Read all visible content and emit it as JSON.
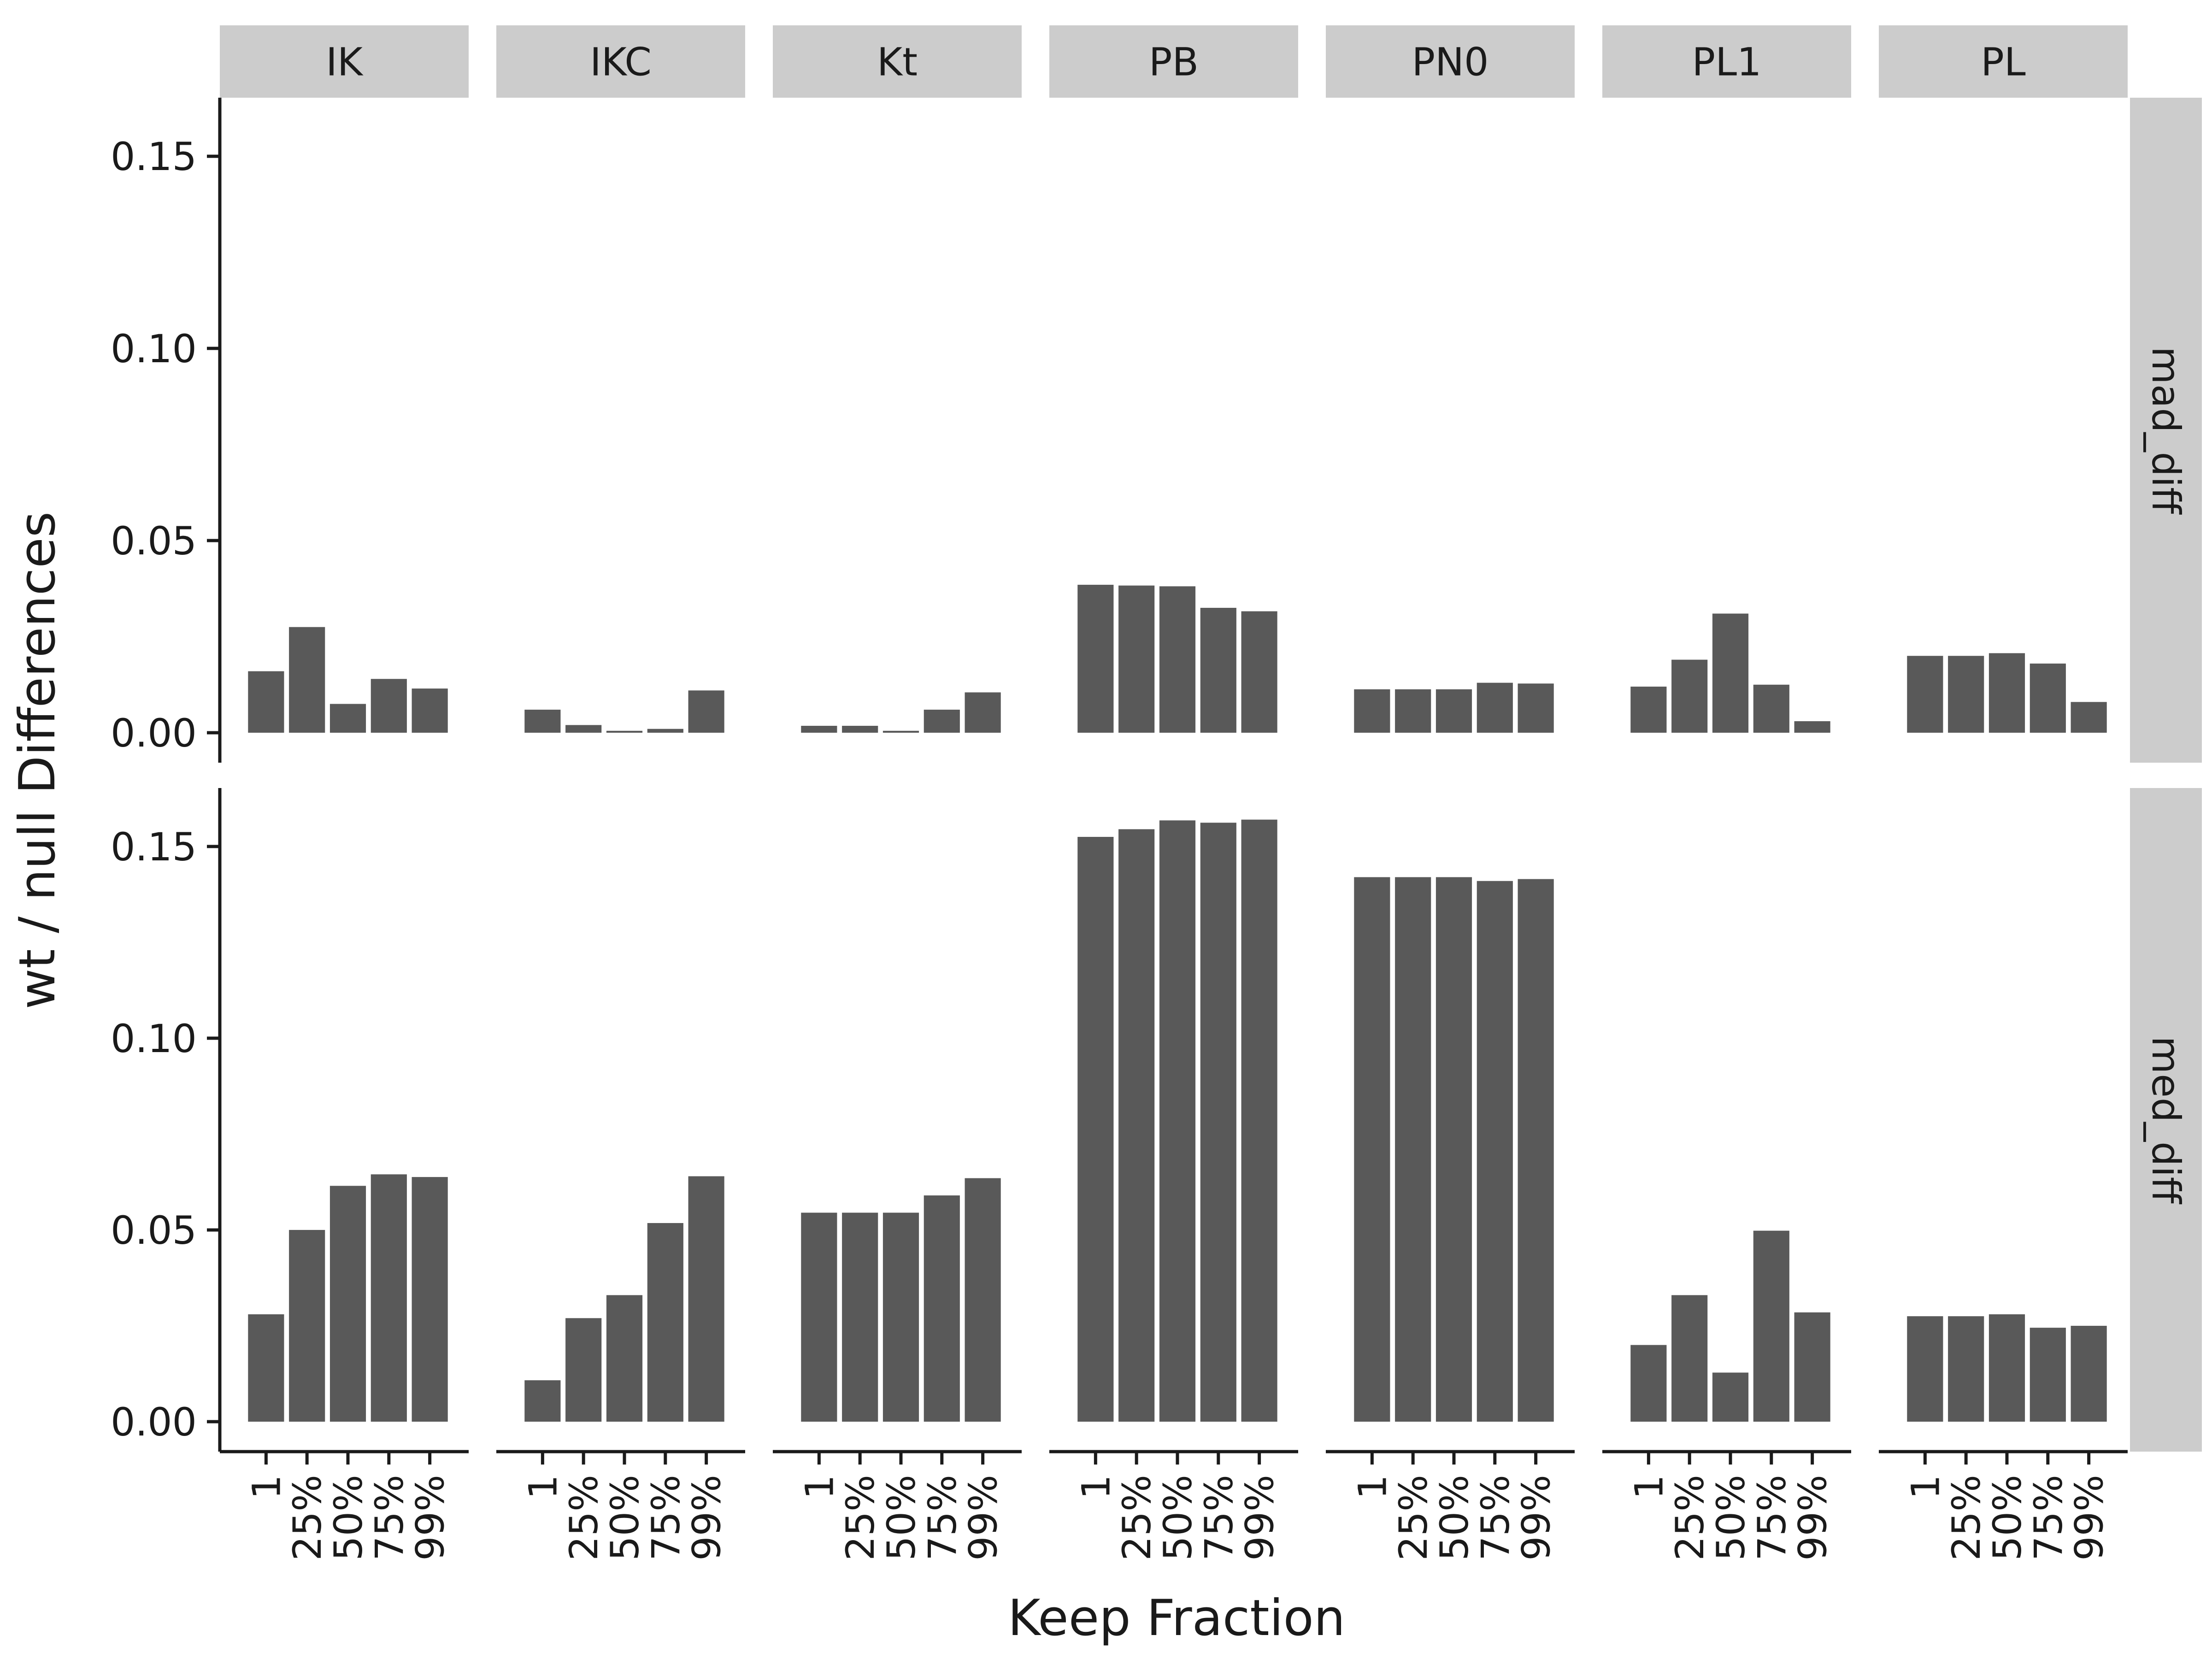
{
  "chart_data": {
    "type": "bar",
    "xlabel": "Keep Fraction",
    "ylabel": "wt / null Differences",
    "ylim": [
      0,
      0.165
    ],
    "yticks": [
      "0.00",
      "0.05",
      "0.10",
      "0.15"
    ],
    "ytick_values": [
      0,
      0.05,
      0.1,
      0.15
    ],
    "categories": [
      "1",
      "25%",
      "50%",
      "75%",
      "99%"
    ],
    "facets_col": [
      "IK",
      "IKC",
      "Kt",
      "PB",
      "PN0",
      "PL1",
      "PL"
    ],
    "facets_row": [
      "mad_diff",
      "med_diff"
    ],
    "bar_color": "#595959",
    "strip_color": "#cccccc",
    "values": {
      "mad_diff": {
        "IK": [
          0.016,
          0.0275,
          0.0075,
          0.014,
          0.0115
        ],
        "IKC": [
          0.006,
          0.002,
          0.0005,
          0.001,
          0.011
        ],
        "Kt": [
          0.0018,
          0.0018,
          0.0005,
          0.006,
          0.0105
        ],
        "PB": [
          0.0385,
          0.0383,
          0.0381,
          0.0325,
          0.0316
        ],
        "PN0": [
          0.0113,
          0.0113,
          0.0113,
          0.013,
          0.0128
        ],
        "PL1": [
          0.012,
          0.019,
          0.031,
          0.0125,
          0.003
        ],
        "PL": [
          0.02,
          0.02,
          0.0207,
          0.018,
          0.008
        ]
      },
      "med_diff": {
        "IK": [
          0.028,
          0.05,
          0.0615,
          0.0645,
          0.0638
        ],
        "IKC": [
          0.0108,
          0.027,
          0.033,
          0.0518,
          0.064
        ],
        "Kt": [
          0.0545,
          0.0545,
          0.0545,
          0.059,
          0.0635
        ],
        "PB": [
          0.1525,
          0.1545,
          0.1568,
          0.1562,
          0.157
        ],
        "PN0": [
          0.142,
          0.142,
          0.142,
          0.141,
          0.1415
        ],
        "PL1": [
          0.02,
          0.033,
          0.0128,
          0.0498,
          0.0285
        ],
        "PL": [
          0.0275,
          0.0275,
          0.028,
          0.0245,
          0.025
        ]
      }
    }
  }
}
